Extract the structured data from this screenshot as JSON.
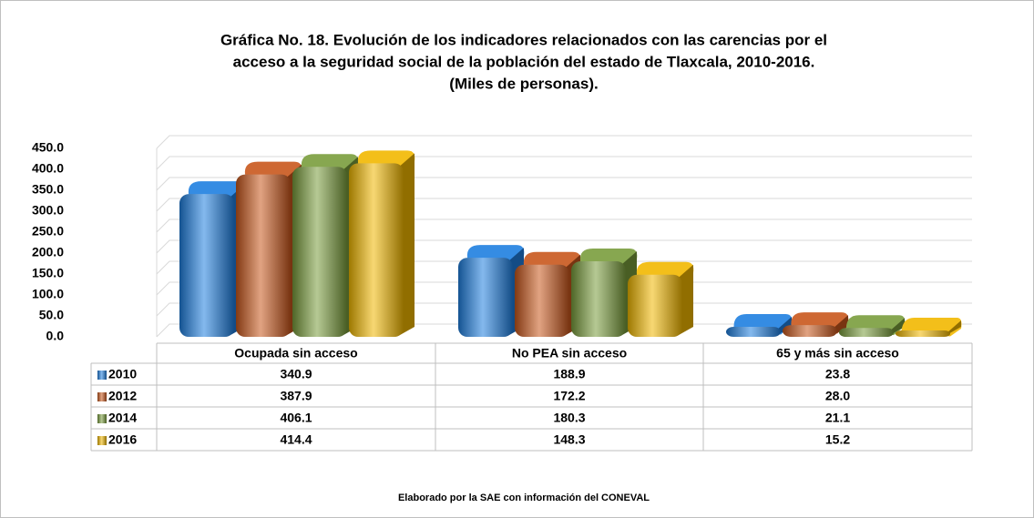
{
  "chart_data": {
    "type": "bar",
    "title": [
      "Gráfica No. 18. Evolución de los indicadores relacionados con las carencias por el",
      "acceso a la seguridad social de la población del estado de Tlaxcala, 2010-2016.",
      "(Miles de personas)."
    ],
    "categories": [
      "Ocupada sin acceso",
      "No PEA sin acceso",
      "65 y más sin acceso"
    ],
    "series": [
      {
        "name": "2010",
        "color": "#1f7fe0",
        "values": [
          340.9,
          188.9,
          23.8
        ],
        "value_labels": [
          "340.9",
          "188.9",
          "23.8"
        ]
      },
      {
        "name": "2012",
        "color": "#c8571c",
        "values": [
          387.9,
          172.2,
          28.0
        ],
        "value_labels": [
          "387.9",
          "172.2",
          "28.0"
        ]
      },
      {
        "name": "2014",
        "color": "#7a9d3c",
        "values": [
          406.1,
          180.3,
          21.1
        ],
        "value_labels": [
          "406.1",
          "180.3",
          "21.1"
        ]
      },
      {
        "name": "2016",
        "color": "#f2b800",
        "values": [
          414.4,
          148.3,
          15.2
        ],
        "value_labels": [
          "414.4",
          "148.3",
          "15.2"
        ]
      }
    ],
    "ylim": [
      0,
      450
    ],
    "yticks": [
      {
        "value": 0,
        "label": "0.0"
      },
      {
        "value": 50,
        "label": "50.0"
      },
      {
        "value": 100,
        "label": "100.0"
      },
      {
        "value": 150,
        "label": "150.0"
      },
      {
        "value": 200,
        "label": "200.0"
      },
      {
        "value": 250,
        "label": "250.0"
      },
      {
        "value": 300,
        "label": "300.0"
      },
      {
        "value": 350,
        "label": "350.0"
      },
      {
        "value": 400,
        "label": "400.0"
      },
      {
        "value": 450,
        "label": "450.0"
      }
    ],
    "grid": true,
    "source": "Elaborado por la SAE con información del CONEVAL"
  }
}
